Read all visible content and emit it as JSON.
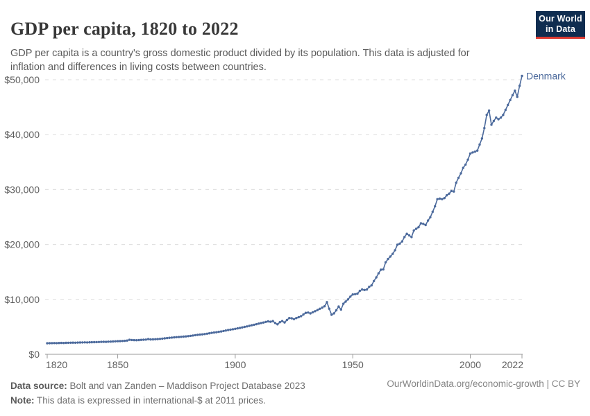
{
  "header": {
    "title": "GDP per capita, 1820 to 2022",
    "subtitle_line1": "GDP per capita is a country's gross domestic product divided by its population. This data is adjusted for",
    "subtitle_line2": "inflation and differences in living costs between countries."
  },
  "logo": {
    "line1": "Our World",
    "line2": "in Data",
    "bg_color": "#0f2d50",
    "accent_color": "#dc3a32"
  },
  "footer": {
    "source_label": "Data source:",
    "source_text": " Bolt and van Zanden – Maddison Project Database 2023",
    "note_label": "Note:",
    "note_text": " This data is expressed in international-$ at 2011 prices.",
    "link_text": "OurWorldinData.org/economic-growth | CC BY"
  },
  "chart_data": {
    "type": "line",
    "title": "GDP per capita, 1820 to 2022",
    "x_range": [
      1820,
      2022
    ],
    "ylim": [
      0,
      50000
    ],
    "grid": "dashed-horizontal",
    "legend_position": "end-of-line-label",
    "colors": {
      "line": "#4c6a9c",
      "grid": "#dcdcdc",
      "axis": "#9a9a9a",
      "tick_text": "#5f5f5f"
    },
    "y_ticks": [
      {
        "value": 0,
        "label": "$0"
      },
      {
        "value": 10000,
        "label": "$10,000"
      },
      {
        "value": 20000,
        "label": "$20,000"
      },
      {
        "value": 30000,
        "label": "$30,000"
      },
      {
        "value": 40000,
        "label": "$40,000"
      },
      {
        "value": 50000,
        "label": "$50,000"
      }
    ],
    "x_ticks": [
      {
        "year": 1820,
        "label": "1820"
      },
      {
        "year": 1850,
        "label": "1850"
      },
      {
        "year": 1900,
        "label": "1900"
      },
      {
        "year": 1950,
        "label": "1950"
      },
      {
        "year": 2000,
        "label": "2000"
      },
      {
        "year": 2022,
        "label": "2022"
      }
    ],
    "series": [
      {
        "name": "Denmark",
        "color": "#4c6a9c",
        "year_start": 1820,
        "year_end": 2022,
        "values": [
          2010,
          2020,
          2030,
          2040,
          2030,
          2055,
          2070,
          2060,
          2085,
          2100,
          2110,
          2120,
          2105,
          2130,
          2145,
          2155,
          2170,
          2160,
          2185,
          2200,
          2215,
          2225,
          2240,
          2255,
          2270,
          2260,
          2295,
          2315,
          2335,
          2360,
          2385,
          2405,
          2430,
          2455,
          2500,
          2640,
          2600,
          2580,
          2560,
          2590,
          2620,
          2650,
          2680,
          2760,
          2700,
          2720,
          2745,
          2770,
          2800,
          2850,
          2900,
          2950,
          3000,
          3040,
          3080,
          3120,
          3150,
          3180,
          3220,
          3260,
          3310,
          3360,
          3420,
          3480,
          3530,
          3580,
          3630,
          3690,
          3750,
          3820,
          3900,
          3960,
          4020,
          4090,
          4160,
          4240,
          4330,
          4420,
          4500,
          4560,
          4640,
          4720,
          4800,
          4900,
          4990,
          5080,
          5180,
          5290,
          5380,
          5480,
          5590,
          5700,
          5780,
          5900,
          6000,
          5920,
          6050,
          5700,
          5450,
          5850,
          6050,
          5800,
          6250,
          6600,
          6550,
          6400,
          6600,
          6750,
          6950,
          7250,
          7550,
          7600,
          7450,
          7650,
          7850,
          8050,
          8300,
          8500,
          8750,
          9500,
          8300,
          7200,
          7450,
          8000,
          8700,
          8150,
          9200,
          9600,
          10000,
          10500,
          10900,
          10950,
          11050,
          11550,
          11800,
          11700,
          11800,
          12300,
          12550,
          13350,
          14000,
          14750,
          15400,
          15450,
          16750,
          17350,
          17800,
          18300,
          18950,
          19950,
          20150,
          20550,
          21350,
          21950,
          21650,
          21350,
          22550,
          22850,
          23150,
          23850,
          23750,
          23550,
          24350,
          24950,
          25950,
          26950,
          28250,
          28350,
          28250,
          28450,
          28950,
          29250,
          29750,
          29650,
          31250,
          32150,
          32950,
          33950,
          34550,
          35450,
          36550,
          36750,
          36900,
          37100,
          38200,
          39300,
          41200,
          43600,
          44400,
          41800,
          42500,
          43100,
          42800,
          43100,
          43600,
          44500,
          45400,
          46300,
          47200,
          48000,
          46900,
          48900,
          50700
        ]
      }
    ]
  }
}
